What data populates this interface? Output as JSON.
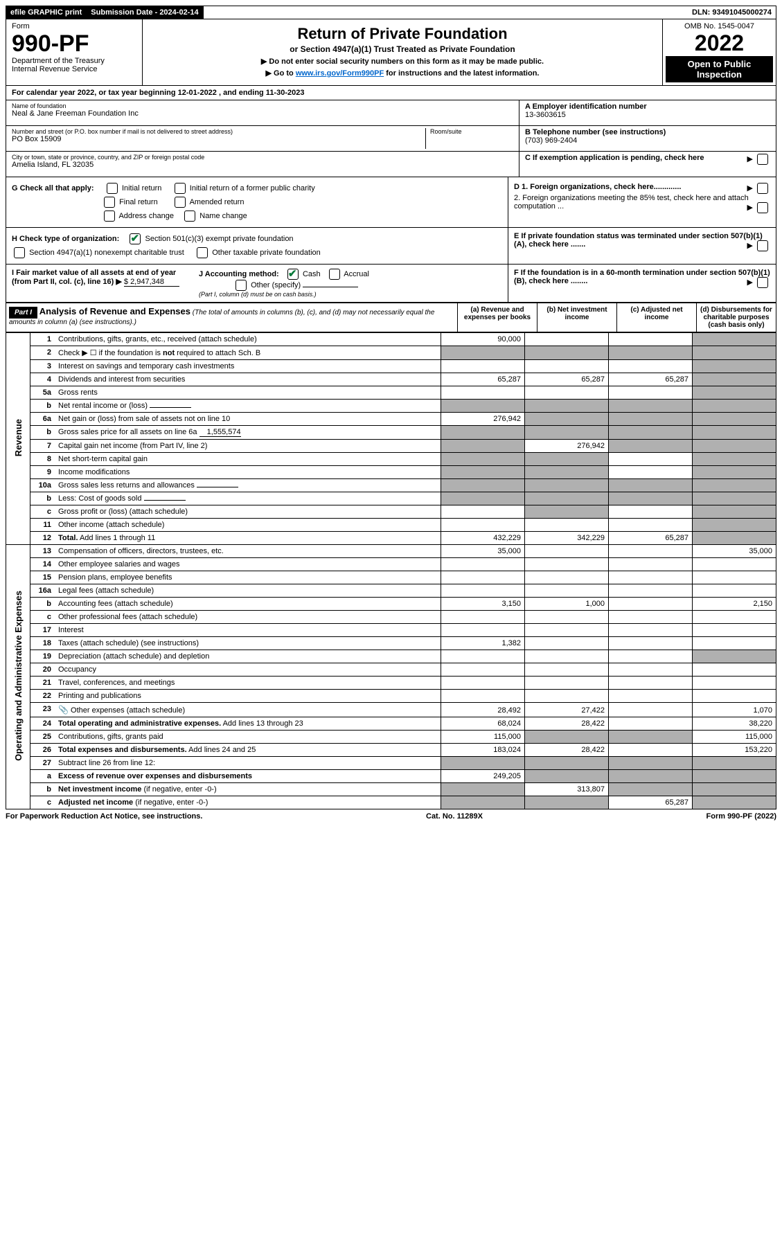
{
  "topbar": {
    "efile": "efile GRAPHIC print",
    "submission": "Submission Date - 2024-02-14",
    "dln": "DLN: 93491045000274"
  },
  "header": {
    "form_label": "Form",
    "form_number": "990-PF",
    "dept": "Department of the Treasury",
    "irs": "Internal Revenue Service",
    "title": "Return of Private Foundation",
    "subtitle": "or Section 4947(a)(1) Trust Treated as Private Foundation",
    "instr1": "▶ Do not enter social security numbers on this form as it may be made public.",
    "instr2_pre": "▶ Go to ",
    "instr2_link": "www.irs.gov/Form990PF",
    "instr2_post": " for instructions and the latest information.",
    "omb": "OMB No. 1545-0047",
    "year": "2022",
    "open": "Open to Public Inspection"
  },
  "calyear": "For calendar year 2022, or tax year beginning 12-01-2022                           , and ending 11-30-2023",
  "foundation": {
    "name_lbl": "Name of foundation",
    "name": "Neal & Jane Freeman Foundation Inc",
    "addr_lbl": "Number and street (or P.O. box number if mail is not delivered to street address)",
    "addr": "PO Box 15909",
    "room_lbl": "Room/suite",
    "city_lbl": "City or town, state or province, country, and ZIP or foreign postal code",
    "city": "Amelia Island, FL  32035",
    "a_lbl": "A Employer identification number",
    "a_val": "13-3603615",
    "b_lbl": "B Telephone number (see instructions)",
    "b_val": "(703) 969-2404",
    "c_lbl": "C If exemption application is pending, check here"
  },
  "checks": {
    "g_lbl": "G Check all that apply:",
    "g_opts": [
      "Initial return",
      "Initial return of a former public charity",
      "Final return",
      "Amended return",
      "Address change",
      "Name change"
    ],
    "h_lbl": "H Check type of organization:",
    "h_opt1": "Section 501(c)(3) exempt private foundation",
    "h_opt2": "Section 4947(a)(1) nonexempt charitable trust",
    "h_opt3": "Other taxable private foundation",
    "i_lbl": "I Fair market value of all assets at end of year (from Part II, col. (c), line 16) ▶",
    "i_val": "$  2,947,348",
    "j_lbl": "J Accounting method:",
    "j_cash": "Cash",
    "j_accrual": "Accrual",
    "j_other": "Other (specify)",
    "j_note": "(Part I, column (d) must be on cash basis.)",
    "d1": "D 1. Foreign organizations, check here.............",
    "d2": "2. Foreign organizations meeting the 85% test, check here and attach computation ...",
    "e_lbl": "E  If private foundation status was terminated under section 507(b)(1)(A), check here .......",
    "f_lbl": "F  If the foundation is in a 60-month termination under section 507(b)(1)(B), check here ........"
  },
  "part1": {
    "label": "Part I",
    "title": "Analysis of Revenue and Expenses",
    "note": "(The total of amounts in columns (b), (c), and (d) may not necessarily equal the amounts in column (a) (see instructions).)",
    "col_a": "(a)   Revenue and expenses per books",
    "col_b": "(b)   Net investment income",
    "col_c": "(c)   Adjusted net income",
    "col_d": "(d)   Disbursements for charitable purposes (cash basis only)"
  },
  "sections": {
    "revenue": "Revenue",
    "expenses": "Operating and Administrative Expenses"
  },
  "rows": [
    {
      "n": "1",
      "label": "Contributions, gifts, grants, etc., received (attach schedule)",
      "a": "90,000",
      "b": "",
      "c": "",
      "d": "",
      "grey": [
        "d"
      ]
    },
    {
      "n": "2",
      "label": "Check ▶ ☐ if the foundation is <b>not</b> required to attach Sch. B",
      "nocols": true
    },
    {
      "n": "3",
      "label": "Interest on savings and temporary cash investments",
      "a": "",
      "b": "",
      "c": "",
      "d": "",
      "grey": [
        "d"
      ]
    },
    {
      "n": "4",
      "label": "Dividends and interest from securities",
      "a": "65,287",
      "b": "65,287",
      "c": "65,287",
      "d": "",
      "grey": [
        "d"
      ]
    },
    {
      "n": "5a",
      "label": "Gross rents",
      "a": "",
      "b": "",
      "c": "",
      "d": "",
      "grey": [
        "d"
      ]
    },
    {
      "n": "b",
      "label": "Net rental income or (loss)",
      "inline": "",
      "nocols": true,
      "grey": [
        "a",
        "b",
        "c",
        "d"
      ]
    },
    {
      "n": "6a",
      "label": "Net gain or (loss) from sale of assets not on line 10",
      "a": "276,942",
      "b": "",
      "c": "",
      "d": "",
      "grey": [
        "b",
        "c",
        "d"
      ]
    },
    {
      "n": "b",
      "label": "Gross sales price for all assets on line 6a",
      "inline": "1,555,574",
      "nocols": true,
      "grey": [
        "a",
        "b",
        "c",
        "d"
      ]
    },
    {
      "n": "7",
      "label": "Capital gain net income (from Part IV, line 2)",
      "a": "",
      "b": "276,942",
      "c": "",
      "d": "",
      "grey": [
        "a",
        "c",
        "d"
      ]
    },
    {
      "n": "8",
      "label": "Net short-term capital gain",
      "a": "",
      "b": "",
      "c": "",
      "d": "",
      "grey": [
        "a",
        "b",
        "d"
      ]
    },
    {
      "n": "9",
      "label": "Income modifications",
      "a": "",
      "b": "",
      "c": "",
      "d": "",
      "grey": [
        "a",
        "b",
        "d"
      ]
    },
    {
      "n": "10a",
      "label": "Gross sales less returns and allowances",
      "inline": "",
      "nocols": true,
      "grey": [
        "a",
        "b",
        "c",
        "d"
      ]
    },
    {
      "n": "b",
      "label": "Less: Cost of goods sold",
      "inline": "",
      "nocols": true,
      "grey": [
        "a",
        "b",
        "c",
        "d"
      ]
    },
    {
      "n": "c",
      "label": "Gross profit or (loss) (attach schedule)",
      "a": "",
      "b": "",
      "c": "",
      "d": "",
      "grey": [
        "b",
        "d"
      ]
    },
    {
      "n": "11",
      "label": "Other income (attach schedule)",
      "a": "",
      "b": "",
      "c": "",
      "d": "",
      "grey": [
        "d"
      ]
    },
    {
      "n": "12",
      "label": "<b>Total.</b> Add lines 1 through 11",
      "a": "432,229",
      "b": "342,229",
      "c": "65,287",
      "d": "",
      "grey": [
        "d"
      ],
      "bold": true
    }
  ],
  "exp_rows": [
    {
      "n": "13",
      "label": "Compensation of officers, directors, trustees, etc.",
      "a": "35,000",
      "b": "",
      "c": "",
      "d": "35,000"
    },
    {
      "n": "14",
      "label": "Other employee salaries and wages",
      "a": "",
      "b": "",
      "c": "",
      "d": ""
    },
    {
      "n": "15",
      "label": "Pension plans, employee benefits",
      "a": "",
      "b": "",
      "c": "",
      "d": ""
    },
    {
      "n": "16a",
      "label": "Legal fees (attach schedule)",
      "a": "",
      "b": "",
      "c": "",
      "d": ""
    },
    {
      "n": "b",
      "label": "Accounting fees (attach schedule)",
      "a": "3,150",
      "b": "1,000",
      "c": "",
      "d": "2,150"
    },
    {
      "n": "c",
      "label": "Other professional fees (attach schedule)",
      "a": "",
      "b": "",
      "c": "",
      "d": ""
    },
    {
      "n": "17",
      "label": "Interest",
      "a": "",
      "b": "",
      "c": "",
      "d": ""
    },
    {
      "n": "18",
      "label": "Taxes (attach schedule) (see instructions)",
      "a": "1,382",
      "b": "",
      "c": "",
      "d": ""
    },
    {
      "n": "19",
      "label": "Depreciation (attach schedule) and depletion",
      "a": "",
      "b": "",
      "c": "",
      "d": "",
      "grey": [
        "d"
      ]
    },
    {
      "n": "20",
      "label": "Occupancy",
      "a": "",
      "b": "",
      "c": "",
      "d": ""
    },
    {
      "n": "21",
      "label": "Travel, conferences, and meetings",
      "a": "",
      "b": "",
      "c": "",
      "d": ""
    },
    {
      "n": "22",
      "label": "Printing and publications",
      "a": "",
      "b": "",
      "c": "",
      "d": ""
    },
    {
      "n": "23",
      "label": "Other expenses (attach schedule)",
      "a": "28,492",
      "b": "27,422",
      "c": "",
      "d": "1,070",
      "clip": true
    },
    {
      "n": "24",
      "label": "<b>Total operating and administrative expenses.</b> Add lines 13 through 23",
      "a": "68,024",
      "b": "28,422",
      "c": "",
      "d": "38,220",
      "bold": true
    },
    {
      "n": "25",
      "label": "Contributions, gifts, grants paid",
      "a": "115,000",
      "b": "",
      "c": "",
      "d": "115,000",
      "grey": [
        "b",
        "c"
      ]
    },
    {
      "n": "26",
      "label": "<b>Total expenses and disbursements.</b> Add lines 24 and 25",
      "a": "183,024",
      "b": "28,422",
      "c": "",
      "d": "153,220",
      "bold": true
    },
    {
      "n": "27",
      "label": "Subtract line 26 from line 12:",
      "nocols": true,
      "grey": [
        "a",
        "b",
        "c",
        "d"
      ]
    },
    {
      "n": "a",
      "label": "<b>Excess of revenue over expenses and disbursements</b>",
      "a": "249,205",
      "b": "",
      "c": "",
      "d": "",
      "grey": [
        "b",
        "c",
        "d"
      ],
      "bold": true
    },
    {
      "n": "b",
      "label": "<b>Net investment income</b> (if negative, enter -0-)",
      "a": "",
      "b": "313,807",
      "c": "",
      "d": "",
      "grey": [
        "a",
        "c",
        "d"
      ],
      "bold": true
    },
    {
      "n": "c",
      "label": "<b>Adjusted net income</b> (if negative, enter -0-)",
      "a": "",
      "b": "",
      "c": "65,287",
      "d": "",
      "grey": [
        "a",
        "b",
        "d"
      ],
      "bold": true
    }
  ],
  "footer": {
    "left": "For Paperwork Reduction Act Notice, see instructions.",
    "mid": "Cat. No. 11289X",
    "right": "Form 990-PF (2022)"
  }
}
